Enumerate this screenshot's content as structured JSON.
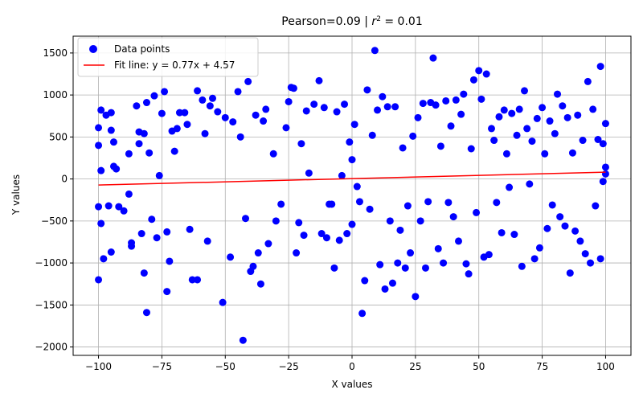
{
  "chart_data": {
    "type": "scatter",
    "title_prefix": "Pearson=0.09 | ",
    "title_r2": "r",
    "title_r2_sup": "2",
    "title_suffix": " = 0.01",
    "xlabel": "X values",
    "ylabel": "Y values",
    "xlim": [
      -110,
      110
    ],
    "ylim": [
      -2100,
      1700
    ],
    "xticks": [
      -100,
      -75,
      -50,
      -25,
      0,
      25,
      50,
      75,
      100
    ],
    "xtick_labels": [
      "−100",
      "−75",
      "−50",
      "−25",
      "0",
      "25",
      "50",
      "75",
      "100"
    ],
    "yticks": [
      -2000,
      -1500,
      -1000,
      -500,
      0,
      500,
      1000,
      1500
    ],
    "ytick_labels": [
      "−2000",
      "−1500",
      "−1000",
      "−500",
      "0",
      "500",
      "1000",
      "1500"
    ],
    "grid": true,
    "legend_position": "top-left",
    "legend": {
      "points_label": "Data points",
      "line_label": "Fit line: y = 0.77x + 4.57"
    },
    "colors": {
      "points": "#0000ff",
      "fit_line": "#ff0000"
    },
    "fit_line": {
      "slope": 0.77,
      "intercept": 4.57,
      "x": [
        -100,
        100
      ]
    },
    "n_points": 1000,
    "series": [
      {
        "kind": "points",
        "points": [
          [
            -100,
            610
          ],
          [
            -100,
            400
          ],
          [
            -100,
            -330
          ],
          [
            -100,
            -1200
          ],
          [
            -99,
            820
          ],
          [
            -99,
            100
          ],
          [
            -99,
            -530
          ],
          [
            -98,
            -950
          ],
          [
            -97,
            760
          ],
          [
            -96,
            -320
          ],
          [
            -95,
            580
          ],
          [
            -95,
            790
          ],
          [
            -95,
            -870
          ],
          [
            -94,
            440
          ],
          [
            -94,
            150
          ],
          [
            -93,
            120
          ],
          [
            -92,
            -330
          ],
          [
            -90,
            -380
          ],
          [
            -88,
            300
          ],
          [
            -88,
            -180
          ],
          [
            -87,
            -760
          ],
          [
            -87,
            -800
          ],
          [
            -85,
            870
          ],
          [
            -84,
            560
          ],
          [
            -84,
            420
          ],
          [
            -83,
            -650
          ],
          [
            -82,
            540
          ],
          [
            -82,
            -1120
          ],
          [
            -81,
            910
          ],
          [
            -81,
            -1590
          ],
          [
            -80,
            310
          ],
          [
            -79,
            -480
          ],
          [
            -78,
            990
          ],
          [
            -77,
            -700
          ],
          [
            -76,
            40
          ],
          [
            -75,
            780
          ],
          [
            -74,
            1040
          ],
          [
            -73,
            -630
          ],
          [
            -73,
            -1340
          ],
          [
            -72,
            -980
          ],
          [
            -71,
            570
          ],
          [
            -70,
            330
          ],
          [
            -69,
            600
          ],
          [
            -68,
            790
          ],
          [
            -66,
            790
          ],
          [
            -65,
            650
          ],
          [
            -64,
            -600
          ],
          [
            -63,
            -1200
          ],
          [
            -61,
            -1200
          ],
          [
            -61,
            1050
          ],
          [
            -59,
            940
          ],
          [
            -58,
            540
          ],
          [
            -57,
            -740
          ],
          [
            -56,
            870
          ],
          [
            -55,
            960
          ],
          [
            -53,
            800
          ],
          [
            -51,
            -1470
          ],
          [
            -50,
            730
          ],
          [
            -48,
            -930
          ],
          [
            -47,
            680
          ],
          [
            -45,
            1040
          ],
          [
            -44,
            500
          ],
          [
            -43,
            -1920
          ],
          [
            -42,
            -470
          ],
          [
            -41,
            1160
          ],
          [
            -40,
            -1100
          ],
          [
            -39,
            -1040
          ],
          [
            -38,
            760
          ],
          [
            -37,
            -880
          ],
          [
            -36,
            -1250
          ],
          [
            -35,
            690
          ],
          [
            -34,
            830
          ],
          [
            -33,
            -770
          ],
          [
            -31,
            300
          ],
          [
            -30,
            -500
          ],
          [
            -28,
            -300
          ],
          [
            -26,
            610
          ],
          [
            -25,
            920
          ],
          [
            -24,
            1090
          ],
          [
            -23,
            1080
          ],
          [
            -22,
            -880
          ],
          [
            -21,
            -520
          ],
          [
            -20,
            420
          ],
          [
            -19,
            -670
          ],
          [
            -18,
            810
          ],
          [
            -17,
            70
          ],
          [
            -15,
            890
          ],
          [
            -13,
            1170
          ],
          [
            -12,
            -650
          ],
          [
            -11,
            850
          ],
          [
            -10,
            -700
          ],
          [
            -9,
            -300
          ],
          [
            -8,
            -300
          ],
          [
            -7,
            -1060
          ],
          [
            -6,
            800
          ],
          [
            -5,
            -730
          ],
          [
            -4,
            40
          ],
          [
            -3,
            890
          ],
          [
            -2,
            -650
          ],
          [
            -1,
            440
          ],
          [
            0,
            230
          ],
          [
            0,
            -540
          ],
          [
            1,
            650
          ],
          [
            2,
            -90
          ],
          [
            3,
            -270
          ],
          [
            4,
            -1600
          ],
          [
            5,
            -1210
          ],
          [
            6,
            1060
          ],
          [
            7,
            -360
          ],
          [
            8,
            520
          ],
          [
            9,
            1530
          ],
          [
            10,
            820
          ],
          [
            11,
            -1020
          ],
          [
            12,
            980
          ],
          [
            13,
            -1310
          ],
          [
            14,
            860
          ],
          [
            15,
            -500
          ],
          [
            16,
            -1240
          ],
          [
            17,
            860
          ],
          [
            18,
            -1000
          ],
          [
            19,
            -610
          ],
          [
            20,
            370
          ],
          [
            21,
            -1060
          ],
          [
            22,
            -320
          ],
          [
            23,
            -880
          ],
          [
            24,
            510
          ],
          [
            25,
            -1400
          ],
          [
            26,
            730
          ],
          [
            27,
            -500
          ],
          [
            28,
            900
          ],
          [
            29,
            -1060
          ],
          [
            30,
            -270
          ],
          [
            31,
            910
          ],
          [
            32,
            1440
          ],
          [
            33,
            880
          ],
          [
            34,
            -830
          ],
          [
            35,
            390
          ],
          [
            36,
            -1000
          ],
          [
            37,
            930
          ],
          [
            38,
            -280
          ],
          [
            39,
            630
          ],
          [
            40,
            -450
          ],
          [
            41,
            940
          ],
          [
            42,
            -740
          ],
          [
            43,
            770
          ],
          [
            44,
            1010
          ],
          [
            45,
            -1010
          ],
          [
            46,
            -1130
          ],
          [
            47,
            360
          ],
          [
            48,
            1180
          ],
          [
            49,
            -400
          ],
          [
            50,
            1290
          ],
          [
            51,
            950
          ],
          [
            52,
            -930
          ],
          [
            53,
            1250
          ],
          [
            54,
            -900
          ],
          [
            55,
            600
          ],
          [
            56,
            460
          ],
          [
            57,
            -280
          ],
          [
            58,
            740
          ],
          [
            59,
            -640
          ],
          [
            60,
            820
          ],
          [
            61,
            300
          ],
          [
            62,
            -100
          ],
          [
            63,
            780
          ],
          [
            64,
            -660
          ],
          [
            65,
            520
          ],
          [
            66,
            830
          ],
          [
            67,
            -1040
          ],
          [
            68,
            1050
          ],
          [
            69,
            600
          ],
          [
            70,
            -60
          ],
          [
            71,
            450
          ],
          [
            72,
            -950
          ],
          [
            73,
            720
          ],
          [
            74,
            -820
          ],
          [
            75,
            850
          ],
          [
            76,
            300
          ],
          [
            77,
            -590
          ],
          [
            78,
            690
          ],
          [
            79,
            -310
          ],
          [
            80,
            540
          ],
          [
            81,
            1010
          ],
          [
            82,
            -450
          ],
          [
            83,
            870
          ],
          [
            84,
            -560
          ],
          [
            85,
            730
          ],
          [
            86,
            -1120
          ],
          [
            87,
            310
          ],
          [
            88,
            -620
          ],
          [
            89,
            760
          ],
          [
            90,
            -740
          ],
          [
            91,
            460
          ],
          [
            92,
            -890
          ],
          [
            93,
            1160
          ],
          [
            94,
            -1000
          ],
          [
            95,
            830
          ],
          [
            96,
            -320
          ],
          [
            97,
            470
          ],
          [
            98,
            -950
          ],
          [
            98,
            1340
          ],
          [
            99,
            420
          ],
          [
            99,
            -30
          ],
          [
            100,
            660
          ],
          [
            100,
            140
          ],
          [
            100,
            60
          ]
        ]
      }
    ]
  }
}
